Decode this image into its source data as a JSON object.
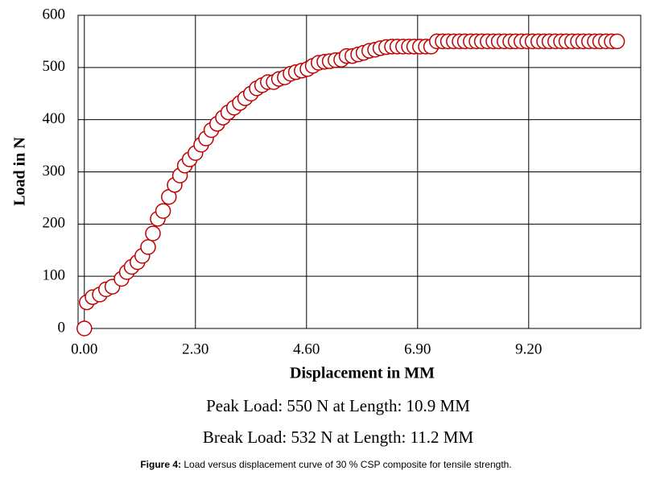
{
  "chart_data": {
    "type": "scatter",
    "xlabel": "Displacement in MM",
    "ylabel": "Load in N",
    "annotations": [
      "Peak Load: 550 N at Length: 10.9 MM",
      "Break Load: 532 N at Length: 11.2 MM"
    ],
    "caption_label": "Figure 4:",
    "caption_text": "Load versus displacement curve of 30 % CSP composite for tensile strength.",
    "marker_color": "#c00000",
    "grid": true,
    "xlim": [
      -0.13,
      11.52
    ],
    "ylim": [
      0,
      600
    ],
    "xticks": [
      {
        "value": 0,
        "label": "0.00"
      },
      {
        "value": 2.3,
        "label": "2.30"
      },
      {
        "value": 4.6,
        "label": "4.60"
      },
      {
        "value": 6.9,
        "label": "6.90"
      },
      {
        "value": 9.2,
        "label": "9.20"
      }
    ],
    "yticks": [
      0,
      100,
      200,
      300,
      400,
      500,
      600
    ],
    "x": [
      0,
      0.05,
      0.17,
      0.32,
      0.45,
      0.58,
      0.77,
      0.88,
      0.98,
      1.1,
      1.2,
      1.32,
      1.42,
      1.52,
      1.63,
      1.75,
      1.87,
      1.98,
      2.08,
      2.18,
      2.3,
      2.42,
      2.52,
      2.63,
      2.75,
      2.87,
      2.98,
      3.1,
      3.22,
      3.33,
      3.45,
      3.57,
      3.68,
      3.8,
      3.92,
      4.03,
      4.15,
      4.27,
      4.38,
      4.5,
      4.62,
      4.73,
      4.85,
      4.97,
      5.08,
      5.2,
      5.32,
      5.43,
      5.55,
      5.67,
      5.78,
      5.9,
      6.02,
      6.13,
      6.25,
      6.37,
      6.48,
      6.6,
      6.72,
      6.83,
      6.95,
      7.07,
      7.18,
      7.3,
      7.42,
      7.53,
      7.65,
      7.77,
      7.88,
      8.0,
      8.12,
      8.23,
      8.35,
      8.47,
      8.58,
      8.7,
      8.82,
      8.93,
      9.05,
      9.17,
      9.28,
      9.4,
      9.52,
      9.63,
      9.75,
      9.87,
      9.98,
      10.1,
      10.22,
      10.33,
      10.45,
      10.57,
      10.68,
      10.8,
      10.92,
      11.03
    ],
    "values": [
      0,
      50,
      60,
      65,
      75,
      80,
      95,
      108,
      118,
      127,
      139,
      156,
      182,
      210,
      225,
      252,
      275,
      293,
      312,
      324,
      336,
      352,
      364,
      380,
      392,
      404,
      414,
      423,
      432,
      441,
      450,
      460,
      466,
      472,
      472,
      478,
      481,
      488,
      491,
      494,
      497,
      503,
      509,
      511,
      512,
      514,
      515,
      522,
      522,
      525,
      528,
      532,
      534,
      537,
      539,
      540,
      540,
      540,
      540,
      540,
      540,
      540,
      540,
      550,
      550,
      550,
      550,
      550,
      550,
      550,
      550,
      550,
      550,
      550,
      550,
      550,
      550,
      550,
      550,
      550,
      550,
      550,
      550,
      550,
      550,
      550,
      550,
      550,
      550,
      550,
      550,
      550,
      550,
      550,
      550,
      550
    ]
  }
}
